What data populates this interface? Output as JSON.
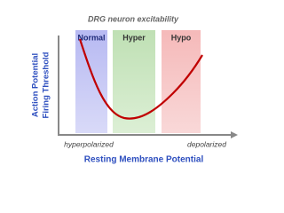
{
  "title": "DRG neuron excitability",
  "bands": [
    {
      "label": "Normal"
    },
    {
      "label": "Hyper"
    },
    {
      "label": "Hypo"
    }
  ],
  "y_axis_label": [
    "Action Potential",
    "Firing Threshold"
  ],
  "x_axis": {
    "label": "Resting Membrane Potential",
    "left_label": "hyperpolarized",
    "right_label": "depolarized"
  }
}
